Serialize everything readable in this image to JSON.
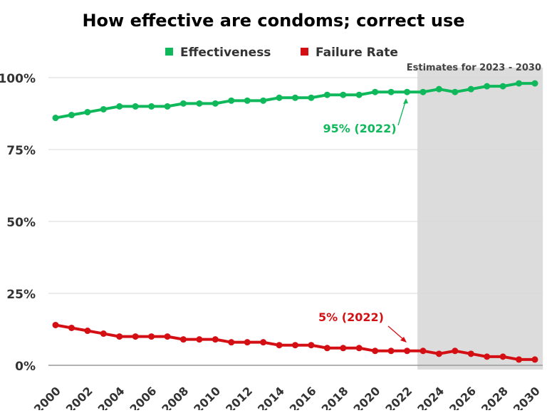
{
  "chart_data": {
    "type": "line",
    "title": "How effective are condoms; correct use",
    "xlabel": "",
    "ylabel": "",
    "x": [
      2000,
      2001,
      2002,
      2003,
      2004,
      2005,
      2006,
      2007,
      2008,
      2009,
      2010,
      2011,
      2012,
      2013,
      2014,
      2015,
      2016,
      2017,
      2018,
      2019,
      2020,
      2021,
      2022,
      2023,
      2024,
      2025,
      2026,
      2027,
      2028,
      2029,
      2030
    ],
    "series": [
      {
        "name": "Effectiveness",
        "color": "#0fb85a",
        "values": [
          86,
          87,
          88,
          89,
          90,
          90,
          90,
          90,
          91,
          91,
          91,
          92,
          92,
          92,
          93,
          93,
          93,
          94,
          94,
          94,
          95,
          95,
          95,
          95,
          96,
          95,
          96,
          97,
          97,
          98,
          98
        ]
      },
      {
        "name": "Failure Rate",
        "color": "#d40f14",
        "values": [
          14,
          13,
          12,
          11,
          10,
          10,
          10,
          10,
          9,
          9,
          9,
          8,
          8,
          8,
          7,
          7,
          7,
          6,
          6,
          6,
          5,
          5,
          5,
          5,
          4,
          5,
          4,
          3,
          3,
          2,
          2
        ]
      }
    ],
    "ylim": [
      0,
      100
    ],
    "xlim": [
      2000,
      2030
    ],
    "yticks": [
      "0%",
      "25%",
      "50%",
      "75%",
      "100%"
    ],
    "ytick_values": [
      0,
      25,
      50,
      75,
      100
    ],
    "xticks": [
      "2000",
      "2002",
      "2004",
      "2006",
      "2008",
      "2010",
      "2012",
      "2014",
      "2016",
      "2018",
      "2020",
      "2022",
      "2024",
      "2026",
      "2028",
      "2030"
    ],
    "grid": "horizontal",
    "legend_position": "top",
    "shaded_region": {
      "label": "Estimates for 2023 - 2030",
      "from": 2022.65,
      "to": 2030.5,
      "color": "#dcdcdc"
    },
    "annotations": [
      {
        "text": "95% (2022)",
        "x": 2022,
        "y": 95,
        "color": "#0fb85a"
      },
      {
        "text": "5% (2022)",
        "x": 2022,
        "y": 5,
        "color": "#d40f14"
      }
    ]
  }
}
